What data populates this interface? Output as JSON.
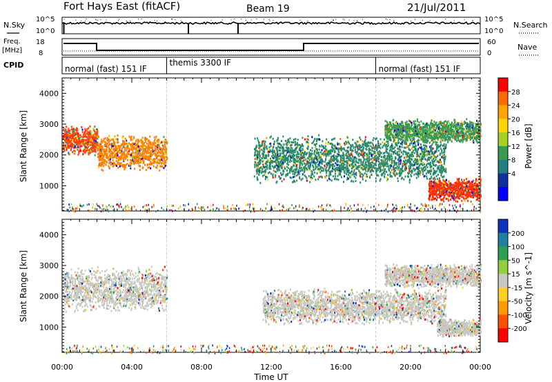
{
  "header": {
    "title": "Fort Hays East (fitACF)",
    "beam": "Beam 19",
    "date": "21/Jul/2011"
  },
  "top_panels": {
    "nsky_label": "N.Sky",
    "nsky_tick_hi": "10^5",
    "nsky_tick_lo": "10^0",
    "nsearch_label": "N.Search",
    "nsearch_tick_hi": "10^5",
    "nsearch_tick_lo": "10^0",
    "freq_label": "Freq.",
    "freq_unit": "[MHz]",
    "freq_tick_hi": "18",
    "freq_tick_lo": "8",
    "nave_label": "Nave",
    "nave_tick_hi": "60",
    "nave_tick_lo": "0",
    "cpid_label": "CPID",
    "cpid_segments": [
      {
        "label": "normal (fast) 151 IF",
        "start_h": 0,
        "end_h": 6
      },
      {
        "label": "themis 3300 IF",
        "start_h": 6,
        "end_h": 18
      },
      {
        "label": "normal (fast) 151 IF",
        "start_h": 18,
        "end_h": 24
      }
    ]
  },
  "chart_data": [
    {
      "type": "heatmap",
      "name": "power",
      "ylabel": "Slant Range [km]",
      "xlim": [
        0,
        24
      ],
      "ylim": [
        180,
        4500
      ],
      "yticks": [
        1000,
        2000,
        3000,
        4000
      ],
      "colorbar": {
        "label": "Power [dB]",
        "ticks": [
          "28",
          "24",
          "20",
          "16",
          "12",
          "8",
          "4"
        ],
        "colors": [
          "#ff0000",
          "#ff6a00",
          "#ffa500",
          "#ffd700",
          "#a8d020",
          "#3a9a50",
          "#208080",
          "#1030a0",
          "#0000ff"
        ]
      },
      "bands": [
        {
          "t0": 0.0,
          "t1": 2.0,
          "r0": 2000,
          "r1": 3000,
          "color": "#ff4000"
        },
        {
          "t0": 2.0,
          "t1": 6.0,
          "r0": 1500,
          "r1": 2700,
          "color": "#ff8000"
        },
        {
          "t0": 11.0,
          "t1": 22.0,
          "r0": 1100,
          "r1": 2700,
          "color": "#2a8a6a"
        },
        {
          "t0": 18.5,
          "t1": 24.0,
          "r0": 2400,
          "r1": 3200,
          "color": "#3a9a50"
        },
        {
          "t0": 21.0,
          "t1": 24.0,
          "r0": 500,
          "r1": 1300,
          "color": "#ff3000"
        }
      ]
    },
    {
      "type": "heatmap",
      "name": "velocity",
      "ylabel": "Slant Range [km]",
      "xlabel": "Time UT",
      "xlim": [
        0,
        24
      ],
      "ylim": [
        180,
        4500
      ],
      "yticks": [
        1000,
        2000,
        3000,
        4000
      ],
      "xticks": [
        "00:00",
        "04:00",
        "08:00",
        "12:00",
        "16:00",
        "20:00",
        "00:00"
      ],
      "colorbar": {
        "label": "Velocity [m s^-1]",
        "ticks": [
          "200",
          "100",
          "50",
          "15",
          "-15",
          "-50",
          "-100",
          "-200"
        ],
        "colors": [
          "#1030c0",
          "#2080a0",
          "#30a050",
          "#90d040",
          "#c8c8c0",
          "#ffd020",
          "#ff9a00",
          "#ff5000",
          "#ff0000"
        ]
      },
      "bands": [
        {
          "t0": 0.0,
          "t1": 6.0,
          "r0": 1500,
          "r1": 3000,
          "color": "#c8c8c0"
        },
        {
          "t0": 11.5,
          "t1": 22.0,
          "r0": 1100,
          "r1": 2300,
          "color": "#c8c8c0"
        },
        {
          "t0": 18.5,
          "t1": 24.0,
          "r0": 2300,
          "r1": 3100,
          "color": "#c8c8c0"
        },
        {
          "t0": 21.5,
          "t1": 24.0,
          "r0": 700,
          "r1": 1300,
          "color": "#c8c8c0"
        }
      ]
    }
  ]
}
